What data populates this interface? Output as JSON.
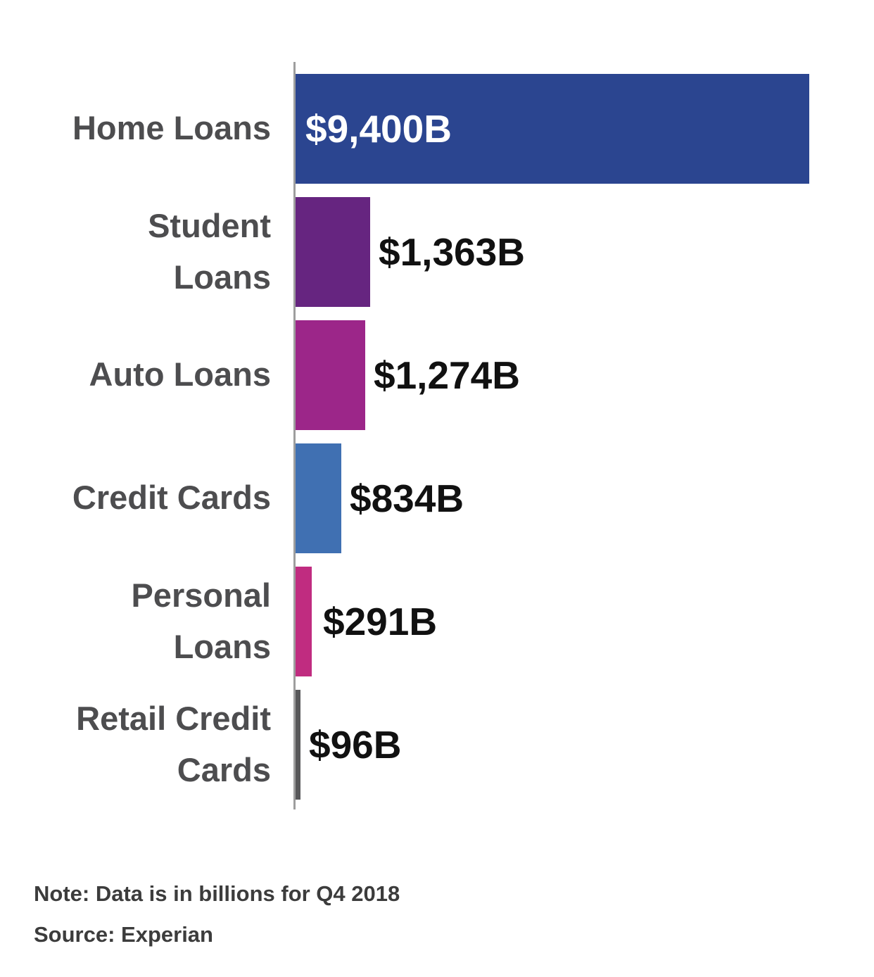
{
  "chart_data": {
    "type": "bar",
    "orientation": "horizontal",
    "categories": [
      "Home Loans",
      "Student Loans",
      "Auto Loans",
      "Credit Cards",
      "Personal Loans",
      "Retail Credit Cards"
    ],
    "display_labels": [
      "Home Loans",
      "Student\nLoans",
      "Auto Loans",
      "Credit Cards",
      "Personal\nLoans",
      "Retail Credit\nCards"
    ],
    "values": [
      9400,
      1363,
      1274,
      834,
      291,
      96
    ],
    "value_labels": [
      "$9,400B",
      "$1,363B",
      "$1,274B",
      "$834B",
      "$291B",
      "$96B"
    ],
    "bar_colors": [
      "#2b4590",
      "#662580",
      "#9c2689",
      "#4070b2",
      "#c02c80",
      "#58585a"
    ],
    "xlim": [
      0,
      9400
    ],
    "unit": "USD billions",
    "grid": false,
    "legend": false,
    "note": "Note: Data is in billions for Q4 2018",
    "source": "Source: Experian"
  },
  "style": {
    "axis_color": "#9e9e9e",
    "label_color": "#4d4d4f",
    "value_color": "#111111",
    "value_inside_color": "#ffffff",
    "note_color": "#3c3c3c",
    "background": "#ffffff"
  }
}
